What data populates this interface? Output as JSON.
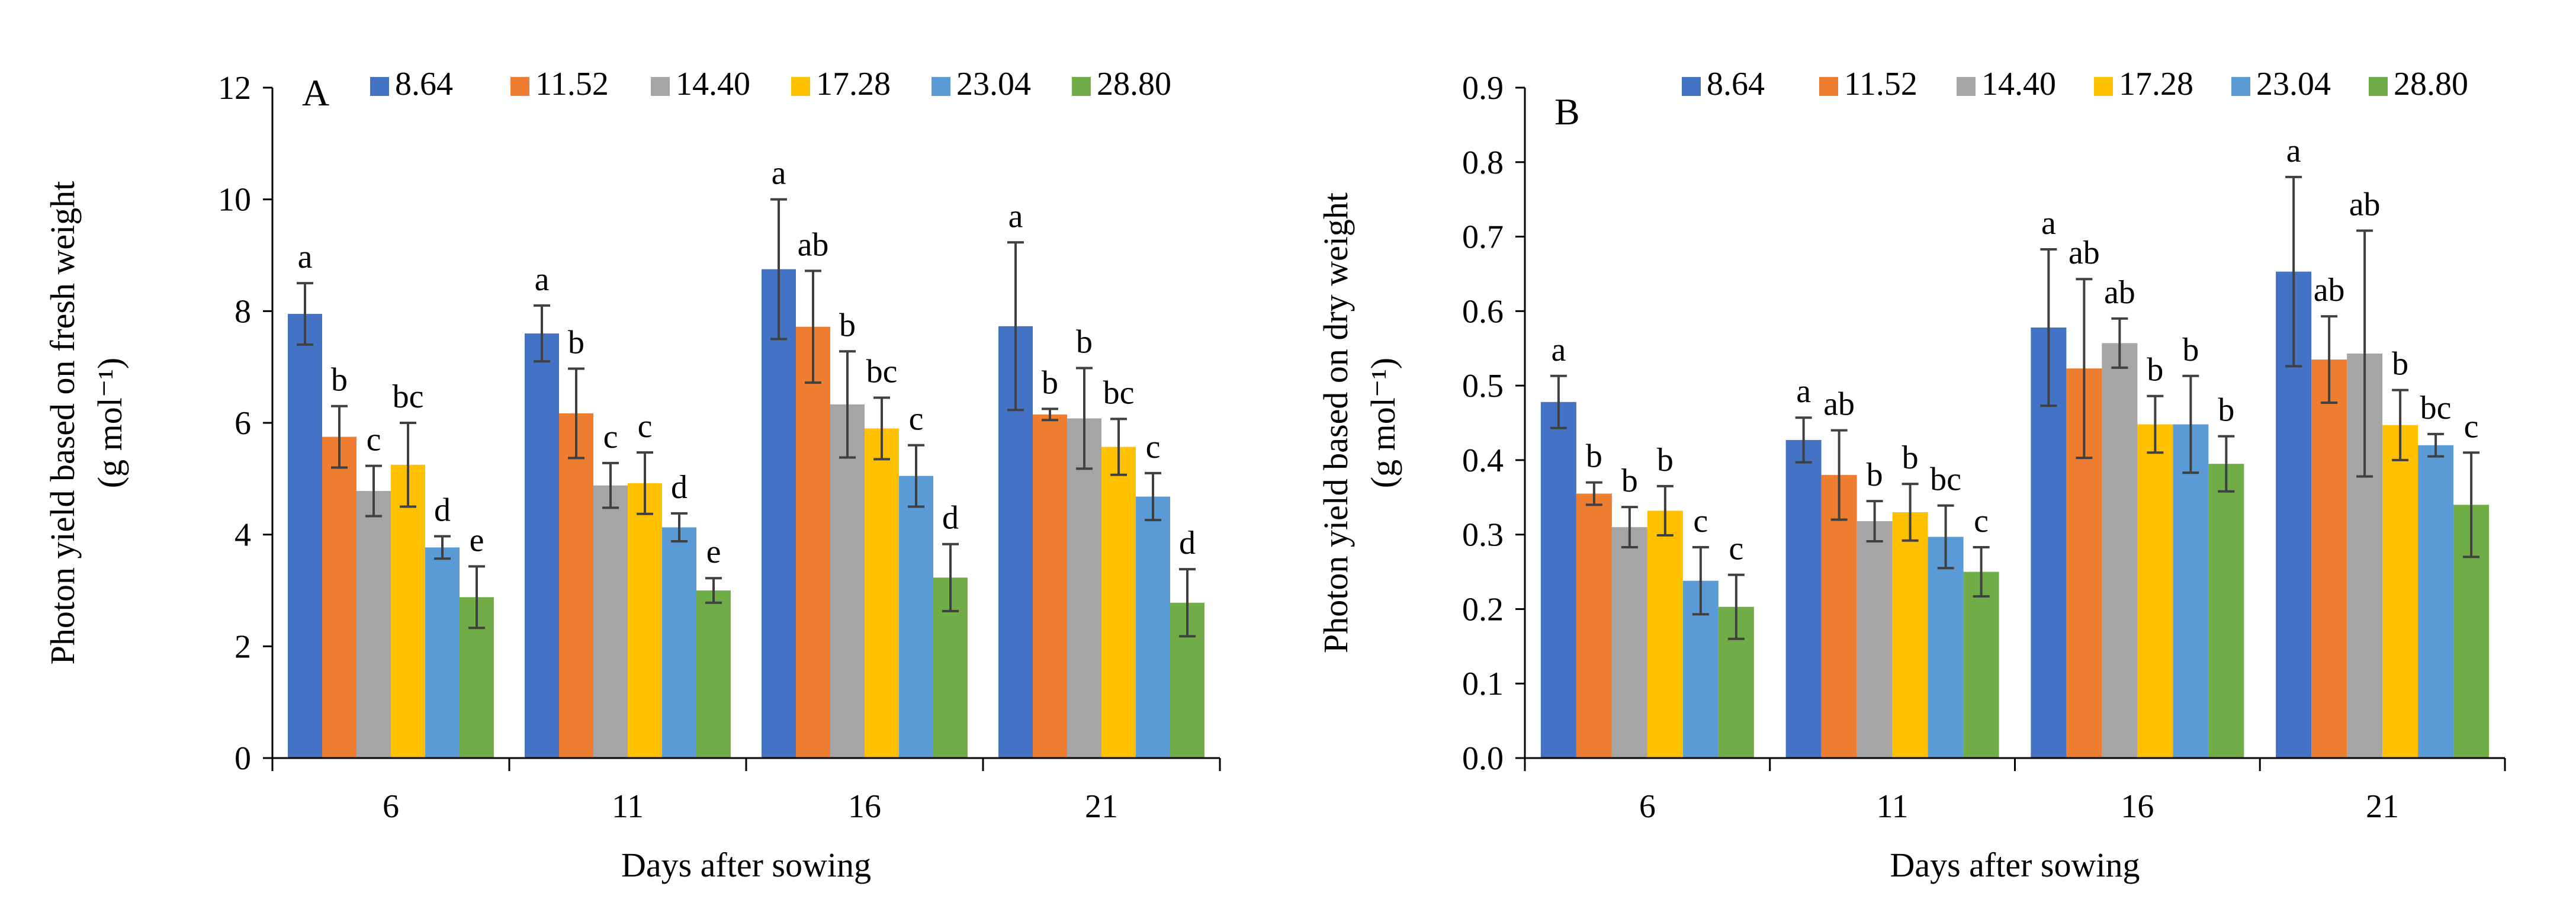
{
  "chart_data": [
    {
      "type": "bar",
      "panel": "A",
      "categories": [
        "6",
        "11",
        "16",
        "21"
      ],
      "xlabel": "Days after sowing",
      "ylabel_line1": "Photon yield based on fresh weight",
      "ylabel_line2": "(g mol⁻¹)",
      "ylim": [
        0,
        12
      ],
      "ytick_step": 2,
      "yticks": [
        "0",
        "2",
        "4",
        "6",
        "8",
        "10",
        "12"
      ],
      "legend_position": "top",
      "series": [
        {
          "name": "8.64",
          "color": "#4472C4",
          "values": [
            7.95,
            7.6,
            8.75,
            7.73
          ],
          "errors": [
            0.55,
            0.5,
            1.25,
            1.5
          ],
          "labels": [
            "a",
            "a",
            "a",
            "a"
          ]
        },
        {
          "name": "11.52",
          "color": "#ED7D31",
          "values": [
            5.75,
            6.17,
            7.72,
            6.15
          ],
          "errors": [
            0.55,
            0.8,
            1.0,
            0.1
          ],
          "labels": [
            "b",
            "b",
            "ab",
            "b"
          ]
        },
        {
          "name": "14.40",
          "color": "#A5A5A5",
          "values": [
            4.78,
            4.88,
            6.33,
            6.08
          ],
          "errors": [
            0.45,
            0.4,
            0.95,
            0.9
          ],
          "labels": [
            "c",
            "c",
            "b",
            "b"
          ]
        },
        {
          "name": "17.28",
          "color": "#FFC000",
          "values": [
            5.25,
            4.92,
            5.9,
            5.57
          ],
          "errors": [
            0.75,
            0.55,
            0.55,
            0.5
          ],
          "labels": [
            "bc",
            "c",
            "bc",
            "bc"
          ]
        },
        {
          "name": "23.04",
          "color": "#5B9BD5",
          "values": [
            3.77,
            4.13,
            5.05,
            4.68
          ],
          "errors": [
            0.2,
            0.25,
            0.55,
            0.42
          ],
          "labels": [
            "d",
            "d",
            "c",
            "c"
          ]
        },
        {
          "name": "28.80",
          "color": "#70AD47",
          "values": [
            2.88,
            3.0,
            3.23,
            2.78
          ],
          "errors": [
            0.55,
            0.22,
            0.6,
            0.6
          ],
          "labels": [
            "e",
            "e",
            "d",
            "d"
          ]
        }
      ]
    },
    {
      "type": "bar",
      "panel": "B",
      "categories": [
        "6",
        "11",
        "16",
        "21"
      ],
      "xlabel": "Days after sowing",
      "ylabel_line1": "Photon yield based on dry weight",
      "ylabel_line2": "(g mol⁻¹)",
      "ylim": [
        0,
        0.9
      ],
      "ytick_step": 0.1,
      "yticks": [
        "0.0",
        "0.1",
        "0.2",
        "0.3",
        "0.4",
        "0.5",
        "0.6",
        "0.7",
        "0.8",
        "0.9"
      ],
      "legend_position": "top",
      "series": [
        {
          "name": "8.64",
          "color": "#4472C4",
          "values": [
            0.478,
            0.427,
            0.578,
            0.653
          ],
          "errors": [
            0.035,
            0.03,
            0.105,
            0.127
          ],
          "labels": [
            "a",
            "a",
            "a",
            "a"
          ]
        },
        {
          "name": "11.52",
          "color": "#ED7D31",
          "values": [
            0.355,
            0.38,
            0.523,
            0.535
          ],
          "errors": [
            0.015,
            0.06,
            0.12,
            0.058
          ],
          "labels": [
            "b",
            "ab",
            "ab",
            "ab"
          ]
        },
        {
          "name": "14.40",
          "color": "#A5A5A5",
          "values": [
            0.31,
            0.318,
            0.557,
            0.543
          ],
          "errors": [
            0.027,
            0.027,
            0.033,
            0.165
          ],
          "labels": [
            "b",
            "b",
            "ab",
            "ab"
          ]
        },
        {
          "name": "17.28",
          "color": "#FFC000",
          "values": [
            0.332,
            0.33,
            0.448,
            0.447
          ],
          "errors": [
            0.033,
            0.038,
            0.038,
            0.047
          ],
          "labels": [
            "b",
            "b",
            "b",
            "b"
          ]
        },
        {
          "name": "23.04",
          "color": "#5B9BD5",
          "values": [
            0.238,
            0.297,
            0.448,
            0.42
          ],
          "errors": [
            0.045,
            0.042,
            0.065,
            0.015
          ],
          "labels": [
            "c",
            "bc",
            "b",
            "bc"
          ]
        },
        {
          "name": "28.80",
          "color": "#70AD47",
          "values": [
            0.203,
            0.25,
            0.395,
            0.34
          ],
          "errors": [
            0.043,
            0.033,
            0.037,
            0.07
          ],
          "labels": [
            "c",
            "c",
            "b",
            "c"
          ]
        }
      ]
    }
  ]
}
